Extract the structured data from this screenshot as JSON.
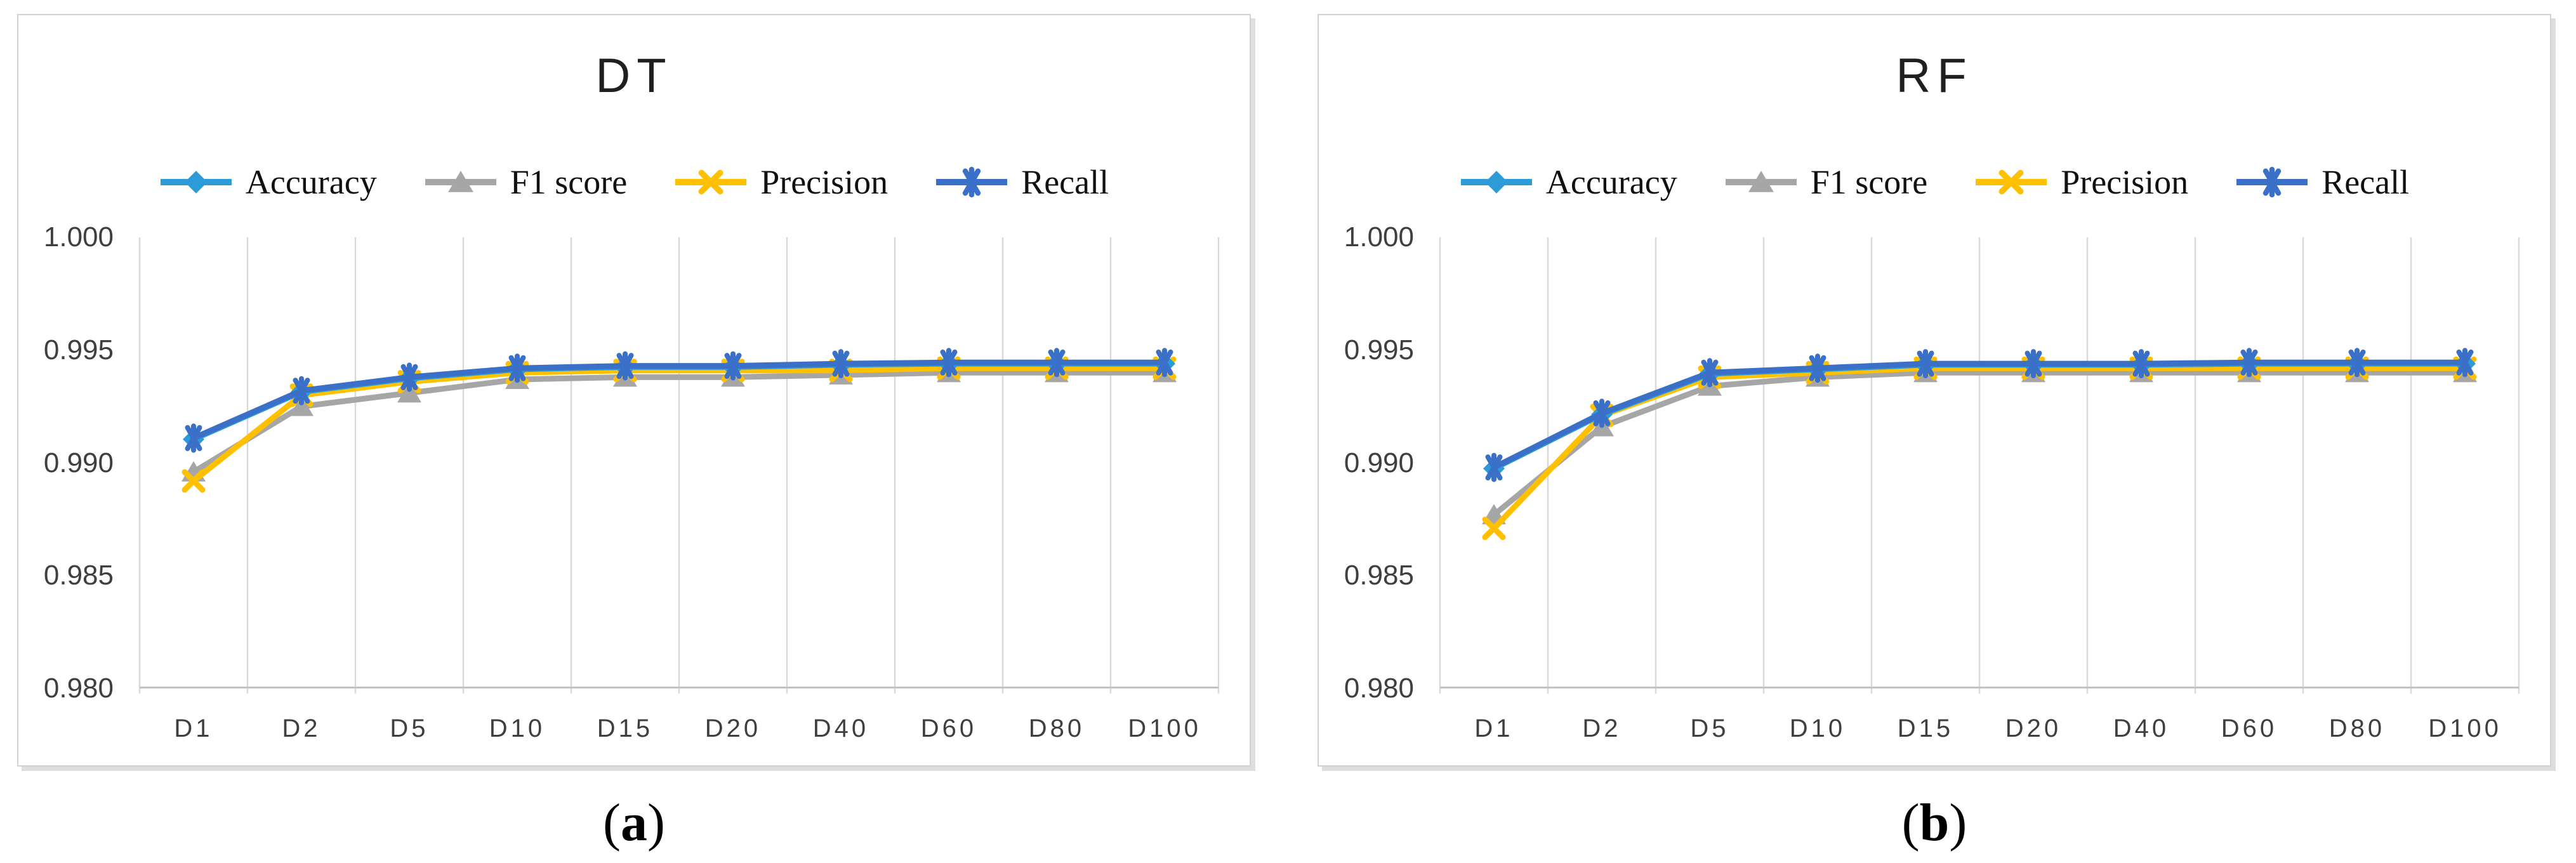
{
  "colors": {
    "accuracy": "#2E9BD9",
    "f1": "#A6A6A6",
    "precision": "#FFC000",
    "recall": "#3A70C8",
    "gridline": "#D9D9D9",
    "axis_line": "#C3C3C3",
    "tick_text": "#3F3F3F",
    "title_text": "#1F1F1F",
    "legend_text": "#111111",
    "panel_border": "#D2D2D2",
    "panel_shadow": "#DEDEDE"
  },
  "captions": [
    {
      "open": "(",
      "letter": "a",
      "close": ")"
    },
    {
      "open": "(",
      "letter": "b",
      "close": ")"
    }
  ],
  "chart_data": [
    {
      "type": "line",
      "title": "DT",
      "categories": [
        "D1",
        "D2",
        "D5",
        "D10",
        "D15",
        "D20",
        "D40",
        "D60",
        "D80",
        "D100"
      ],
      "xlabel": "",
      "ylabel": "",
      "ylim": [
        0.98,
        1.0
      ],
      "y_tick_labels": [
        "1.000",
        "0.995",
        "0.990",
        "0.985",
        "0.980"
      ],
      "grid": "vertical-only",
      "legend_position": "top",
      "draw_order": [
        1,
        2,
        0,
        3
      ],
      "series": [
        {
          "name": "Accuracy",
          "marker": "diamond",
          "color_key": "accuracy",
          "values": [
            0.99105,
            0.99315,
            0.99375,
            0.99415,
            0.99425,
            0.99425,
            0.99435,
            0.9944,
            0.9944,
            0.9944
          ]
        },
        {
          "name": "F1 score",
          "marker": "triangle",
          "color_key": "f1",
          "values": [
            0.9896,
            0.9925,
            0.9931,
            0.9937,
            0.9938,
            0.9938,
            0.9939,
            0.994,
            0.994,
            0.994
          ]
        },
        {
          "name": "Precision",
          "marker": "x",
          "color_key": "precision",
          "values": [
            0.9892,
            0.993,
            0.9936,
            0.994,
            0.9941,
            0.9941,
            0.9941,
            0.9942,
            0.9942,
            0.9942
          ]
        },
        {
          "name": "Recall",
          "marker": "asterisk",
          "color_key": "recall",
          "values": [
            0.9911,
            0.9932,
            0.9938,
            0.9942,
            0.9943,
            0.9943,
            0.9944,
            0.99445,
            0.99445,
            0.99445
          ]
        }
      ]
    },
    {
      "type": "line",
      "title": "RF",
      "categories": [
        "D1",
        "D2",
        "D5",
        "D10",
        "D15",
        "D20",
        "D40",
        "D60",
        "D80",
        "D100"
      ],
      "xlabel": "",
      "ylabel": "",
      "ylim": [
        0.98,
        1.0
      ],
      "y_tick_labels": [
        "1.000",
        "0.995",
        "0.990",
        "0.985",
        "0.980"
      ],
      "grid": "vertical-only",
      "legend_position": "top",
      "draw_order": [
        1,
        2,
        0,
        3
      ],
      "series": [
        {
          "name": "Accuracy",
          "marker": "diamond",
          "color_key": "accuracy",
          "values": [
            0.98975,
            0.99215,
            0.99395,
            0.99415,
            0.99435,
            0.99435,
            0.99435,
            0.9944,
            0.9944,
            0.9944
          ]
        },
        {
          "name": "F1 score",
          "marker": "triangle",
          "color_key": "f1",
          "values": [
            0.9877,
            0.9916,
            0.9934,
            0.9938,
            0.994,
            0.994,
            0.994,
            0.994,
            0.994,
            0.994
          ]
        },
        {
          "name": "Precision",
          "marker": "x",
          "color_key": "precision",
          "values": [
            0.9871,
            0.9921,
            0.9938,
            0.994,
            0.9942,
            0.9942,
            0.9942,
            0.9942,
            0.9942,
            0.9942
          ]
        },
        {
          "name": "Recall",
          "marker": "asterisk",
          "color_key": "recall",
          "values": [
            0.9898,
            0.9922,
            0.994,
            0.9942,
            0.9944,
            0.9944,
            0.9944,
            0.99445,
            0.99445,
            0.99445
          ]
        }
      ]
    }
  ]
}
